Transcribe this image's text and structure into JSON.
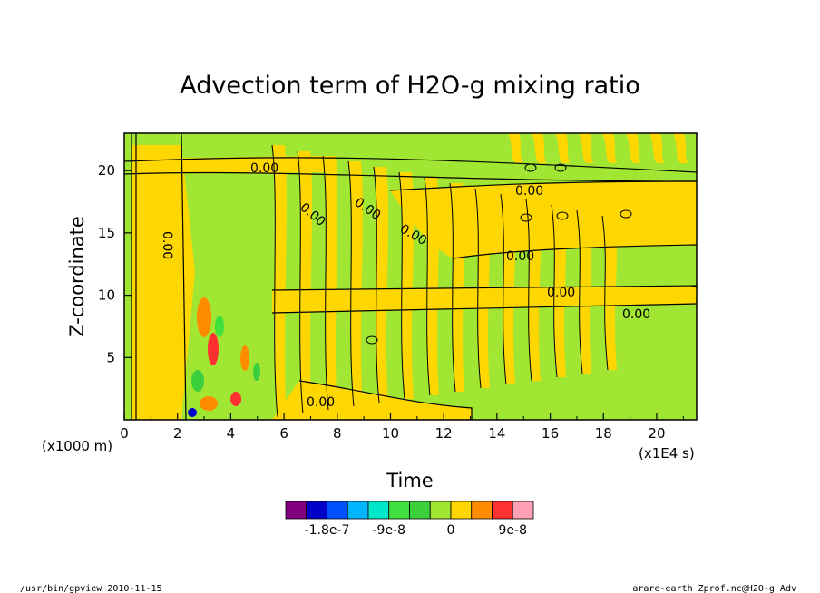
{
  "chart_data": {
    "type": "heatmap",
    "title": "Advection term of H2O-g mixing ratio",
    "xlabel": "Time",
    "ylabel": "Z-coordinate",
    "x_unit": "(x1E4 s)",
    "y_unit": "(x1000 m)",
    "xlim": [
      0,
      21.5
    ],
    "ylim": [
      0,
      23
    ],
    "x_ticks": [
      "0",
      "2",
      "4",
      "6",
      "8",
      "10",
      "12",
      "14",
      "16",
      "18",
      "20"
    ],
    "y_ticks": [
      "5",
      "10",
      "15",
      "20"
    ],
    "contour_label": "0.00",
    "colorbar": {
      "colors": [
        "#800080",
        "#0000c8",
        "#0050ff",
        "#00b4ff",
        "#00e6c8",
        "#40e040",
        "#3ccf3c",
        "#a0e632",
        "#ffd700",
        "#ff8c00",
        "#ff3030",
        "#ffa0b4"
      ],
      "tick_labels": [
        "-1.8e-7",
        "-9e-8",
        "0",
        "9e-8"
      ]
    },
    "dominant_colors": {
      "positive": "#ffd700",
      "negative": "#a0e632"
    }
  },
  "footer": {
    "left": "/usr/bin/gpview   2010-11-15",
    "right": "arare-earth_Zprof.nc@H2O-g_Adv"
  }
}
